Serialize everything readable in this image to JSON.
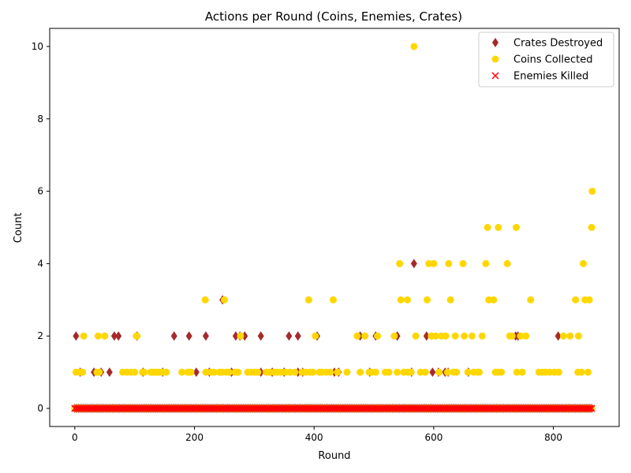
{
  "chart_data": {
    "type": "scatter",
    "title": "Actions per Round (Coins, Enemies, Crates)",
    "xlabel": "Round",
    "ylabel": "Count",
    "xlim": [
      -42,
      910
    ],
    "ylim": [
      -0.5,
      10.5
    ],
    "xticks": [
      0,
      200,
      400,
      600,
      800
    ],
    "yticks": [
      0,
      2,
      4,
      6,
      8,
      10
    ],
    "grid": false,
    "legend_position": "top-right",
    "zero_baseline": {
      "from": 0,
      "to": 866,
      "step": 3
    },
    "series": [
      {
        "name": "Crates Destroyed",
        "marker": "diamond",
        "color": "#a52a2a",
        "points": [
          [
            2,
            2
          ],
          [
            9,
            1
          ],
          [
            32,
            1
          ],
          [
            44,
            1
          ],
          [
            58,
            1
          ],
          [
            66,
            2
          ],
          [
            73,
            2
          ],
          [
            104,
            2
          ],
          [
            114,
            1
          ],
          [
            147,
            1
          ],
          [
            166,
            2
          ],
          [
            191,
            2
          ],
          [
            203,
            1
          ],
          [
            219,
            2
          ],
          [
            225,
            1
          ],
          [
            247,
            3
          ],
          [
            262,
            1
          ],
          [
            269,
            2
          ],
          [
            276,
            2
          ],
          [
            284,
            2
          ],
          [
            311,
            1
          ],
          [
            311,
            2
          ],
          [
            330,
            1
          ],
          [
            350,
            1
          ],
          [
            358,
            2
          ],
          [
            373,
            1
          ],
          [
            373,
            2
          ],
          [
            381,
            1
          ],
          [
            405,
            2
          ],
          [
            434,
            1
          ],
          [
            441,
            1
          ],
          [
            477,
            2
          ],
          [
            493,
            1
          ],
          [
            503,
            2
          ],
          [
            539,
            2
          ],
          [
            563,
            1
          ],
          [
            567,
            4
          ],
          [
            588,
            2
          ],
          [
            598,
            1
          ],
          [
            608,
            1
          ],
          [
            619,
            1
          ],
          [
            624,
            1
          ],
          [
            658,
            1
          ],
          [
            737,
            2
          ],
          [
            741,
            2
          ],
          [
            808,
            2
          ]
        ]
      },
      {
        "name": "Coins Collected",
        "marker": "circle",
        "color": "#ffd700",
        "points": [
          [
            2,
            1
          ],
          [
            8,
            1
          ],
          [
            13,
            1
          ],
          [
            15,
            2
          ],
          [
            37,
            1
          ],
          [
            39,
            2
          ],
          [
            41,
            1
          ],
          [
            50,
            2
          ],
          [
            80,
            1
          ],
          [
            87,
            1
          ],
          [
            94,
            1
          ],
          [
            100,
            1
          ],
          [
            103,
            2
          ],
          [
            104,
            2
          ],
          [
            113,
            1
          ],
          [
            116,
            1
          ],
          [
            127,
            1
          ],
          [
            131,
            1
          ],
          [
            136,
            1
          ],
          [
            141,
            1
          ],
          [
            146,
            1
          ],
          [
            153,
            1
          ],
          [
            179,
            1
          ],
          [
            189,
            1
          ],
          [
            194,
            1
          ],
          [
            218,
            3
          ],
          [
            219,
            1
          ],
          [
            227,
            1
          ],
          [
            233,
            1
          ],
          [
            242,
            1
          ],
          [
            246,
            1
          ],
          [
            250,
            3
          ],
          [
            253,
            1
          ],
          [
            258,
            1
          ],
          [
            268,
            1
          ],
          [
            273,
            1
          ],
          [
            277,
            2
          ],
          [
            289,
            1
          ],
          [
            295,
            1
          ],
          [
            301,
            1
          ],
          [
            306,
            1
          ],
          [
            320,
            1
          ],
          [
            326,
            1
          ],
          [
            333,
            1
          ],
          [
            338,
            1
          ],
          [
            344,
            1
          ],
          [
            352,
            1
          ],
          [
            360,
            1
          ],
          [
            368,
            1
          ],
          [
            380,
            1
          ],
          [
            386,
            1
          ],
          [
            391,
            3
          ],
          [
            393,
            1
          ],
          [
            398,
            1
          ],
          [
            402,
            2
          ],
          [
            409,
            1
          ],
          [
            413,
            1
          ],
          [
            420,
            1
          ],
          [
            427,
            1
          ],
          [
            432,
            3
          ],
          [
            439,
            1
          ],
          [
            455,
            1
          ],
          [
            472,
            2
          ],
          [
            477,
            1
          ],
          [
            485,
            2
          ],
          [
            492,
            1
          ],
          [
            496,
            1
          ],
          [
            503,
            1
          ],
          [
            506,
            2
          ],
          [
            519,
            1
          ],
          [
            525,
            1
          ],
          [
            534,
            2
          ],
          [
            539,
            1
          ],
          [
            543,
            4
          ],
          [
            545,
            3
          ],
          [
            550,
            1
          ],
          [
            556,
            3
          ],
          [
            557,
            1
          ],
          [
            562,
            1
          ],
          [
            567,
            10
          ],
          [
            570,
            2
          ],
          [
            578,
            1
          ],
          [
            586,
            1
          ],
          [
            589,
            3
          ],
          [
            592,
            4
          ],
          [
            596,
            2
          ],
          [
            600,
            4
          ],
          [
            603,
            2
          ],
          [
            609,
            1
          ],
          [
            613,
            2
          ],
          [
            620,
            2
          ],
          [
            623,
            1
          ],
          [
            625,
            4
          ],
          [
            628,
            3
          ],
          [
            633,
            1
          ],
          [
            636,
            2
          ],
          [
            638,
            1
          ],
          [
            649,
            4
          ],
          [
            651,
            2
          ],
          [
            657,
            1
          ],
          [
            664,
            2
          ],
          [
            667,
            1
          ],
          [
            673,
            1
          ],
          [
            676,
            1
          ],
          [
            681,
            2
          ],
          [
            687,
            4
          ],
          [
            690,
            5
          ],
          [
            692,
            3
          ],
          [
            700,
            3
          ],
          [
            703,
            1
          ],
          [
            707,
            1
          ],
          [
            708,
            5
          ],
          [
            713,
            1
          ],
          [
            723,
            4
          ],
          [
            727,
            2
          ],
          [
            731,
            2
          ],
          [
            738,
            5
          ],
          [
            739,
            1
          ],
          [
            745,
            2
          ],
          [
            748,
            1
          ],
          [
            754,
            2
          ],
          [
            762,
            3
          ],
          [
            776,
            1
          ],
          [
            782,
            1
          ],
          [
            787,
            1
          ],
          [
            794,
            1
          ],
          [
            802,
            1
          ],
          [
            809,
            1
          ],
          [
            817,
            2
          ],
          [
            828,
            2
          ],
          [
            837,
            3
          ],
          [
            841,
            1
          ],
          [
            842,
            2
          ],
          [
            847,
            1
          ],
          [
            850,
            4
          ],
          [
            853,
            3
          ],
          [
            858,
            1
          ],
          [
            860,
            3
          ],
          [
            864,
            5
          ],
          [
            865,
            6
          ]
        ]
      },
      {
        "name": "Enemies Killed",
        "marker": "x",
        "color": "#ff0000",
        "points": []
      }
    ]
  }
}
